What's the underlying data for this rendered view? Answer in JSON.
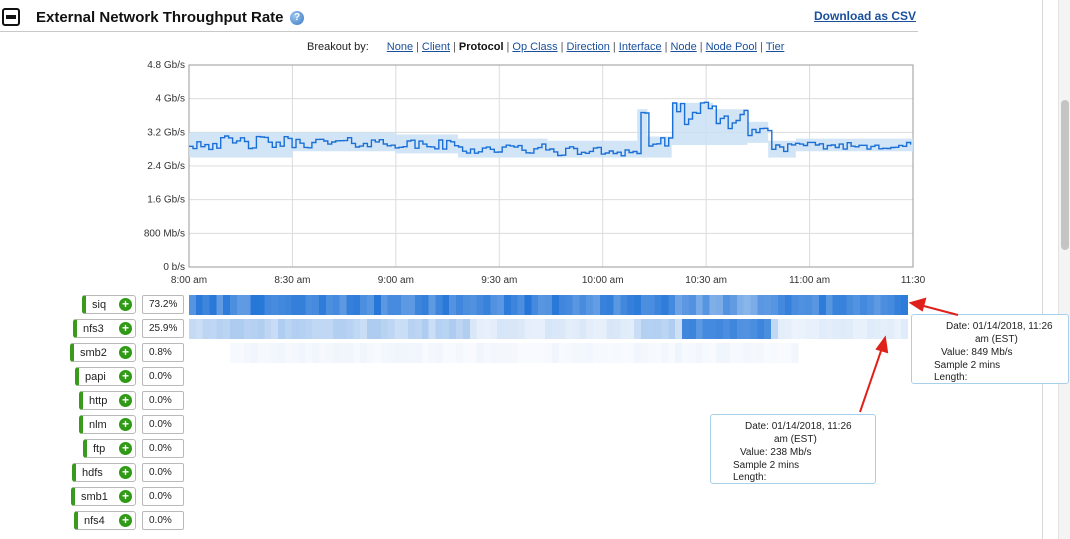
{
  "header": {
    "title": "External Network Throughput Rate",
    "help_icon": "help-icon",
    "download_label": "Download as CSV"
  },
  "breakout": {
    "label": "Breakout by:",
    "options": [
      {
        "label": "None",
        "active": false
      },
      {
        "label": "Client",
        "active": false
      },
      {
        "label": "Protocol",
        "active": true
      },
      {
        "label": "Op Class",
        "active": false
      },
      {
        "label": "Direction",
        "active": false
      },
      {
        "label": "Interface",
        "active": false
      },
      {
        "label": "Node",
        "active": false
      },
      {
        "label": "Node Pool",
        "active": false
      },
      {
        "label": "Tier",
        "active": false
      }
    ]
  },
  "colors": {
    "line": "#1a6fd6",
    "band": "#c9e0f6",
    "grid": "#dcdcdc",
    "add_icon": "#2f9a15",
    "arrow": "#e0201a",
    "tooltip_border": "#a9d0ea"
  },
  "chart_data": {
    "type": "line",
    "x_ticks": [
      "8:00 am",
      "8:30 am",
      "9:00 am",
      "9:30 am",
      "10:00 am",
      "10:30 am",
      "11:00 am",
      "11:30"
    ],
    "y_ticks": [
      "0 b/s",
      "800 Mb/s",
      "1.6 Gb/s",
      "2.4 Gb/s",
      "3.2 Gb/s",
      "4 Gb/s",
      "4.8 Gb/s"
    ],
    "ylim_gbps": [
      0,
      4.8
    ],
    "grid": true,
    "series": [
      {
        "segments": [
          {
            "start_min": 0,
            "end_min": 30,
            "mean_gbps": 2.95,
            "lo_gbps": 2.6,
            "hi_gbps": 3.2
          },
          {
            "start_min": 30,
            "end_min": 60,
            "mean_gbps": 2.95,
            "lo_gbps": 2.75,
            "hi_gbps": 3.2
          },
          {
            "start_min": 60,
            "end_min": 78,
            "mean_gbps": 2.9,
            "lo_gbps": 2.7,
            "hi_gbps": 3.15
          },
          {
            "start_min": 78,
            "end_min": 104,
            "mean_gbps": 2.8,
            "lo_gbps": 2.6,
            "hi_gbps": 3.05
          },
          {
            "start_min": 104,
            "end_min": 130,
            "mean_gbps": 2.75,
            "lo_gbps": 2.6,
            "hi_gbps": 3.0
          },
          {
            "start_min": 130,
            "end_min": 133,
            "mean_gbps": 3.65,
            "lo_gbps": 2.6,
            "hi_gbps": 3.75
          },
          {
            "start_min": 133,
            "end_min": 140,
            "mean_gbps": 2.95,
            "lo_gbps": 2.6,
            "hi_gbps": 3.1
          },
          {
            "start_min": 140,
            "end_min": 152,
            "mean_gbps": 3.65,
            "lo_gbps": 2.9,
            "hi_gbps": 3.9
          },
          {
            "start_min": 152,
            "end_min": 162,
            "mean_gbps": 3.5,
            "lo_gbps": 2.9,
            "hi_gbps": 3.75
          },
          {
            "start_min": 162,
            "end_min": 168,
            "mean_gbps": 3.25,
            "lo_gbps": 2.95,
            "hi_gbps": 3.45
          },
          {
            "start_min": 168,
            "end_min": 176,
            "mean_gbps": 2.85,
            "lo_gbps": 2.6,
            "hi_gbps": 3.0
          },
          {
            "start_min": 176,
            "end_min": 210,
            "mean_gbps": 2.88,
            "lo_gbps": 2.75,
            "hi_gbps": 3.05
          }
        ]
      }
    ],
    "x_minutes_at_ticks": [
      0,
      30,
      60,
      90,
      120,
      150,
      180,
      210
    ]
  },
  "protocols": [
    {
      "name": "siq",
      "percent": "73.2%",
      "share": 0.732
    },
    {
      "name": "nfs3",
      "percent": "25.9%",
      "share": 0.259
    },
    {
      "name": "smb2",
      "percent": "0.8%",
      "share": 0.008
    },
    {
      "name": "papi",
      "percent": "0.0%",
      "share": 0.0
    },
    {
      "name": "http",
      "percent": "0.0%",
      "share": 0.0
    },
    {
      "name": "nlm",
      "percent": "0.0%",
      "share": 0.0
    },
    {
      "name": "ftp",
      "percent": "0.0%",
      "share": 0.0
    },
    {
      "name": "hdfs",
      "percent": "0.0%",
      "share": 0.0
    },
    {
      "name": "smb1",
      "percent": "0.0%",
      "share": 0.0
    },
    {
      "name": "nfs4",
      "percent": "0.0%",
      "share": 0.0
    }
  ],
  "tooltips": [
    {
      "date_label": "Date:",
      "date": "01/14/2018, 11:26",
      "date_suffix": "am (EST)",
      "value_label": "Value:",
      "value": "849 Mb/s",
      "sample": "Sample 2 mins",
      "length": "Length:"
    },
    {
      "date_label": "Date:",
      "date": "01/14/2018, 11:26",
      "date_suffix": "am (EST)",
      "value_label": "Value:",
      "value": "238 Mb/s",
      "sample": "Sample 2 mins",
      "length": "Length:"
    }
  ]
}
